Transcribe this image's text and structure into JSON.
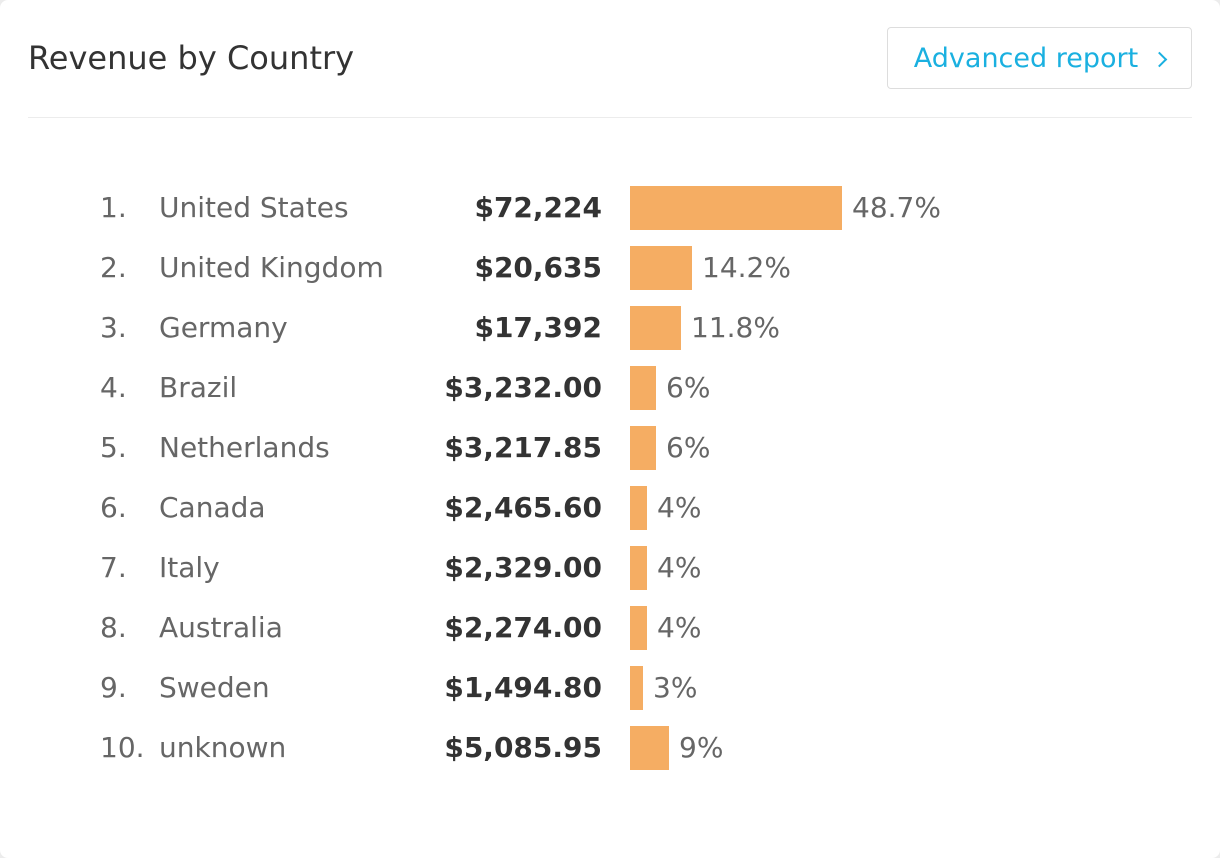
{
  "header": {
    "title": "Revenue by Country",
    "report_button_label": "Advanced report"
  },
  "colors": {
    "bar": "#f5ad63",
    "accent": "#1ab0e0"
  },
  "icons": {
    "report_button": "chevron-right-icon"
  },
  "chart_data": {
    "type": "bar",
    "orientation": "horizontal",
    "title": "Revenue by Country",
    "rows": [
      {
        "rank": "1.",
        "country": "United States",
        "revenue": "$72,224",
        "percent": 48.7,
        "percent_label": "48.7%"
      },
      {
        "rank": "2.",
        "country": "United Kingdom",
        "revenue": "$20,635",
        "percent": 14.2,
        "percent_label": "14.2%"
      },
      {
        "rank": "3.",
        "country": "Germany",
        "revenue": "$17,392",
        "percent": 11.8,
        "percent_label": "11.8%"
      },
      {
        "rank": "4.",
        "country": "Brazil",
        "revenue": "$3,232.00",
        "percent": 6,
        "percent_label": "6%"
      },
      {
        "rank": "5.",
        "country": "Netherlands",
        "revenue": "$3,217.85",
        "percent": 6,
        "percent_label": "6%"
      },
      {
        "rank": "6.",
        "country": "Canada",
        "revenue": "$2,465.60",
        "percent": 4,
        "percent_label": "4%"
      },
      {
        "rank": "7.",
        "country": "Italy",
        "revenue": "$2,329.00",
        "percent": 4,
        "percent_label": "4%"
      },
      {
        "rank": "8.",
        "country": "Australia",
        "revenue": "$2,274.00",
        "percent": 4,
        "percent_label": "4%"
      },
      {
        "rank": "9.",
        "country": "Sweden",
        "revenue": "$1,494.80",
        "percent": 3,
        "percent_label": "3%"
      },
      {
        "rank": "10.",
        "country": "unknown",
        "revenue": "$5,085.95",
        "percent": 9,
        "percent_label": "9%"
      }
    ]
  }
}
